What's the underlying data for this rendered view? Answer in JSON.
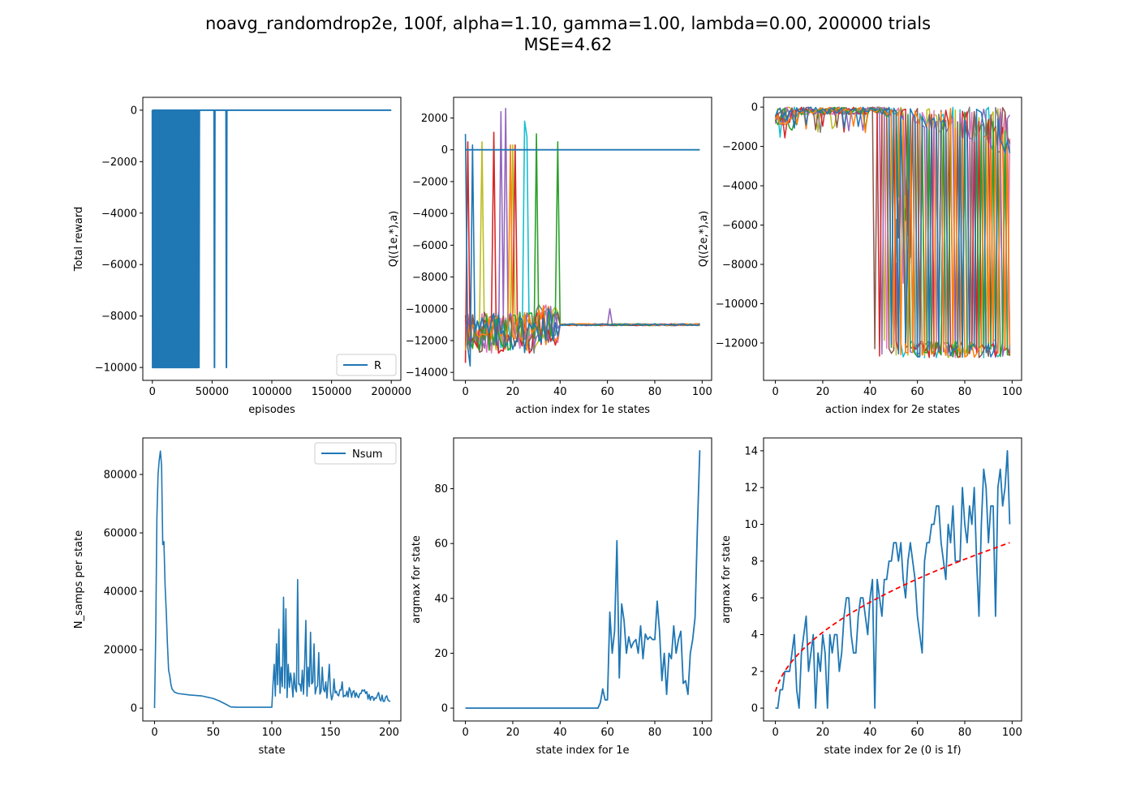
{
  "figure_title_lines": [
    "noavg_randomdrop2e, 100f, alpha=1.10, gamma=1.00, lambda=0.00, 200000 trials",
    "MSE=4.62"
  ],
  "colors": {
    "series": [
      "#1f77b4",
      "#ff7f0e",
      "#2ca02c",
      "#d62728",
      "#9467bd",
      "#8c564b",
      "#e377c2",
      "#7f7f7f",
      "#bcbd22",
      "#17becf"
    ],
    "reference": "#ff0000"
  },
  "chart_data": [
    {
      "id": "reward",
      "type": "line",
      "xlabel": "episodes",
      "ylabel": "Total reward",
      "xlim": [
        -8000,
        208000
      ],
      "ylim": [
        -10500,
        500
      ],
      "xticks": [
        0,
        50000,
        100000,
        150000,
        200000
      ],
      "xtick_labels": [
        "0",
        "50000",
        "100000",
        "150000",
        "200000"
      ],
      "yticks": [
        0,
        -2000,
        -4000,
        -6000,
        -8000,
        -10000
      ],
      "ytick_labels": [
        "0",
        "−2000",
        "−4000",
        "−6000",
        "−8000",
        "−10000"
      ],
      "legend": {
        "entries": [
          "R"
        ],
        "loc": "lower-right"
      },
      "series": [
        {
          "name": "R",
          "band": {
            "x0": 0,
            "x1": 38000,
            "ymin": -10000,
            "ymax": 0
          },
          "spikes_x": [
            39000,
            52000,
            62000
          ],
          "spike_min": -10000,
          "baseline": 0,
          "xmax": 200000
        }
      ]
    },
    {
      "id": "q1e",
      "type": "line",
      "xlabel": "action index for 1e states",
      "ylabel": "Q((1e,*),a)",
      "xlim": [
        -5,
        104
      ],
      "ylim": [
        -14500,
        3300
      ],
      "xticks": [
        0,
        20,
        40,
        60,
        80,
        100
      ],
      "xtick_labels": [
        "0",
        "20",
        "40",
        "60",
        "80",
        "100"
      ],
      "yticks": [
        2000,
        0,
        -2000,
        -4000,
        -6000,
        -8000,
        -10000,
        -12000,
        -14000
      ],
      "ytick_labels": [
        "2000",
        "0",
        "−2000",
        "−4000",
        "−6000",
        "−8000",
        "−10000",
        "−12000",
        "−14000"
      ],
      "baseline": {
        "value": 0,
        "x": [
          0,
          99
        ]
      },
      "plateau": -11000,
      "noise_until": 40,
      "spikes": [
        {
          "x": 0,
          "y": 1000,
          "c": 0
        },
        {
          "x": 1,
          "y": 500,
          "c": 3
        },
        {
          "x": 3,
          "y": 300,
          "c": 0
        },
        {
          "x": 7,
          "y": 500,
          "c": 8
        },
        {
          "x": 12,
          "y": 1100,
          "c": 3
        },
        {
          "x": 15,
          "y": 2400,
          "c": 4
        },
        {
          "x": 17,
          "y": 2600,
          "c": 4
        },
        {
          "x": 19,
          "y": 300,
          "c": 1
        },
        {
          "x": 20,
          "y": 300,
          "c": 8
        },
        {
          "x": 21,
          "y": 300,
          "c": 3
        },
        {
          "x": 25,
          "y": 1800,
          "c": 9
        },
        {
          "x": 26,
          "y": 800,
          "c": 9
        },
        {
          "x": 30,
          "y": 1000,
          "c": 2
        },
        {
          "x": 33,
          "y": -9800,
          "c": 1
        },
        {
          "x": 39,
          "y": 500,
          "c": 2
        },
        {
          "x": 61,
          "y": -10000,
          "c": 4
        }
      ]
    },
    {
      "id": "q2e",
      "type": "line",
      "xlabel": "action index for 2e states",
      "ylabel": "Q((2e,*),a)",
      "xlim": [
        -5,
        104
      ],
      "ylim": [
        -13900,
        500
      ],
      "xticks": [
        0,
        20,
        40,
        60,
        80,
        100
      ],
      "xtick_labels": [
        "0",
        "20",
        "40",
        "60",
        "80",
        "100"
      ],
      "yticks": [
        0,
        -2000,
        -4000,
        -6000,
        -8000,
        -10000,
        -12000
      ],
      "ytick_labels": [
        "0",
        "−2000",
        "−4000",
        "−6000",
        "−8000",
        "−10000",
        "−12000"
      ],
      "drop_start": 40,
      "low_level": -12300,
      "series_count": 10
    },
    {
      "id": "nsamps",
      "type": "line",
      "xlabel": "state",
      "ylabel": "N_samps per state",
      "xlim": [
        -10,
        210
      ],
      "ylim": [
        -4400,
        92500
      ],
      "xticks": [
        0,
        50,
        100,
        150,
        200
      ],
      "xtick_labels": [
        "0",
        "50",
        "100",
        "150",
        "200"
      ],
      "yticks": [
        0,
        20000,
        40000,
        60000,
        80000
      ],
      "ytick_labels": [
        "0",
        "20000",
        "40000",
        "60000",
        "80000"
      ],
      "legend": {
        "entries": [
          "Nsum"
        ],
        "loc": "top-right"
      },
      "series": [
        {
          "name": "Nsum",
          "head": [
            [
              0,
              0
            ],
            [
              1,
              25000
            ],
            [
              2,
              65000
            ],
            [
              3,
              80000
            ],
            [
              4,
              85000
            ],
            [
              5,
              88000
            ],
            [
              6,
              83000
            ],
            [
              7,
              56000
            ],
            [
              8,
              57000
            ],
            [
              9,
              42000
            ],
            [
              10,
              33000
            ],
            [
              11,
              22000
            ],
            [
              12,
              13000
            ],
            [
              13,
              11000
            ],
            [
              14,
              8000
            ],
            [
              15,
              6500
            ],
            [
              17,
              5500
            ],
            [
              20,
              5000
            ],
            [
              30,
              4500
            ],
            [
              40,
              4200
            ],
            [
              50,
              3300
            ],
            [
              55,
              2500
            ],
            [
              60,
              1500
            ],
            [
              65,
              400
            ],
            [
              70,
              300
            ],
            [
              100,
              300
            ]
          ],
          "tail_start": 101,
          "tail_end": 201,
          "tail_peaks": [
            [
              102,
              15000
            ],
            [
              104,
              22000
            ],
            [
              106,
              27000
            ],
            [
              108,
              14000
            ],
            [
              110,
              38000
            ],
            [
              112,
              34000
            ],
            [
              114,
              15000
            ],
            [
              116,
              12000
            ],
            [
              119,
              12000
            ],
            [
              122,
              44000
            ],
            [
              126,
              13000
            ],
            [
              128,
              15000
            ],
            [
              129,
              30000
            ],
            [
              131,
              14000
            ],
            [
              133,
              26000
            ],
            [
              136,
              22000
            ],
            [
              140,
              19000
            ],
            [
              143,
              14000
            ],
            [
              146,
              9000
            ],
            [
              149,
              15000
            ],
            [
              153,
              10000
            ],
            [
              160,
              9000
            ],
            [
              166,
              7000
            ],
            [
              170,
              6000
            ],
            [
              175,
              5000
            ],
            [
              180,
              5000
            ],
            [
              185,
              4000
            ]
          ]
        }
      ]
    },
    {
      "id": "argmax1e",
      "type": "line",
      "xlabel": "state index for 1e",
      "ylabel": "argmax for state",
      "xlim": [
        -5,
        104
      ],
      "ylim": [
        -4.7,
        98.5
      ],
      "xticks": [
        0,
        20,
        40,
        60,
        80,
        100
      ],
      "xtick_labels": [
        "0",
        "20",
        "40",
        "60",
        "80",
        "100"
      ],
      "yticks": [
        0,
        20,
        40,
        60,
        80
      ],
      "ytick_labels": [
        "0",
        "20",
        "40",
        "60",
        "80"
      ],
      "series": [
        {
          "name": "",
          "x": [
            0,
            56,
            57,
            58,
            59,
            60,
            61,
            62,
            63,
            64,
            65,
            66,
            67,
            68,
            69,
            70,
            71,
            72,
            73,
            74,
            75,
            76,
            77,
            78,
            79,
            80,
            81,
            82,
            83,
            84,
            85,
            86,
            87,
            88,
            89,
            90,
            91,
            92,
            93,
            94,
            95,
            96,
            97,
            98,
            99
          ],
          "y": [
            0,
            0,
            2,
            7,
            3,
            3,
            35,
            20,
            28,
            61,
            11,
            38,
            32,
            20,
            26,
            22,
            24,
            25,
            20,
            30,
            18,
            27,
            25,
            26,
            25,
            25,
            39,
            28,
            10,
            20,
            5,
            20,
            18,
            30,
            20,
            25,
            28,
            9,
            10,
            5,
            20,
            25,
            33,
            66,
            94
          ]
        }
      ]
    },
    {
      "id": "argmax2e",
      "type": "line",
      "xlabel": "state index for 2e (0 is 1f)",
      "ylabel": "argmax for state",
      "xlim": [
        -5,
        104
      ],
      "ylim": [
        -0.7,
        14.7
      ],
      "xticks": [
        0,
        20,
        40,
        60,
        80,
        100
      ],
      "xtick_labels": [
        "0",
        "20",
        "40",
        "60",
        "80",
        "100"
      ],
      "yticks": [
        0,
        2,
        4,
        6,
        8,
        10,
        12,
        14
      ],
      "ytick_labels": [
        "0",
        "2",
        "4",
        "6",
        "8",
        "10",
        "12",
        "14"
      ],
      "series": [
        {
          "name": "",
          "x": [
            0,
            1,
            2,
            3,
            4,
            5,
            6,
            7,
            8,
            9,
            10,
            11,
            12,
            13,
            14,
            15,
            16,
            17,
            18,
            19,
            20,
            21,
            22,
            23,
            24,
            25,
            26,
            27,
            28,
            29,
            30,
            31,
            32,
            33,
            34,
            35,
            36,
            37,
            38,
            39,
            40,
            41,
            42,
            43,
            44,
            45,
            46,
            47,
            48,
            49,
            50,
            51,
            52,
            53,
            54,
            55,
            56,
            57,
            58,
            59,
            60,
            61,
            62,
            63,
            64,
            65,
            66,
            67,
            68,
            69,
            70,
            71,
            72,
            73,
            74,
            75,
            76,
            77,
            78,
            79,
            80,
            81,
            82,
            83,
            84,
            85,
            86,
            87,
            88,
            89,
            90,
            91,
            92,
            93,
            94,
            95,
            96,
            97,
            98,
            99
          ],
          "y": [
            0,
            0,
            1,
            1,
            2,
            2,
            2,
            3,
            4,
            1,
            0,
            3,
            4,
            5,
            2,
            3,
            4,
            0,
            3,
            2,
            4,
            3,
            0,
            4,
            3,
            4,
            4,
            2,
            3,
            5,
            6,
            6,
            4,
            3,
            3,
            5,
            6,
            6,
            5,
            4,
            6,
            7,
            0,
            7,
            6,
            5,
            7,
            7,
            8,
            8,
            9,
            9,
            8,
            9,
            7,
            6,
            8,
            9,
            8,
            7,
            5,
            4,
            3,
            8,
            9,
            9,
            10,
            10,
            11,
            11,
            9,
            8,
            7,
            10,
            9,
            11,
            8,
            8,
            8,
            12,
            10,
            9,
            11,
            10,
            12,
            8,
            5,
            10,
            13,
            12,
            9,
            11,
            11,
            5,
            12,
            13,
            11,
            12,
            14,
            10
          ],
          "color": "#1f77b4"
        },
        {
          "name": "",
          "kind": "reference_sqrt",
          "x0": 0,
          "x1": 99,
          "scale": 0.9,
          "color": "#ff0000",
          "dash": true
        }
      ]
    }
  ]
}
